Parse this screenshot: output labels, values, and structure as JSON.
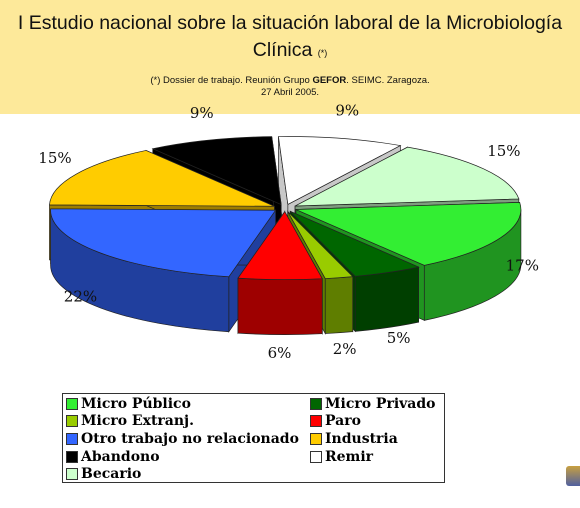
{
  "chart_data": {
    "type": "pie3d",
    "title": "I Estudio nacional sobre la situación laboral de la Microbiología Clínica",
    "title_note": "(*)",
    "source": {
      "prefix": "(*) Dossier de trabajo. Reunión Grupo",
      "group": "GEFOR",
      "suffix": ". SEIMC. Zaragoza.",
      "date": "27 Abril 2005."
    },
    "categories": [
      "Micro Público",
      "Micro Privado",
      "Micro Extranj.",
      "Paro",
      "Otro trabajo no relacionado",
      "Industria",
      "Abandono",
      "Remir",
      "Becario"
    ],
    "values": [
      17,
      5,
      2,
      6,
      22,
      15,
      9,
      9,
      15
    ],
    "value_labels": [
      "17%",
      "5%",
      "2%",
      "6%",
      "22%",
      "15%",
      "9%",
      "9%",
      "15%"
    ],
    "colors": [
      "#33ee33",
      "#006600",
      "#99cc00",
      "#ff0000",
      "#3366ff",
      "#ffcc00",
      "#000000",
      "#ffffff",
      "#ccffcc"
    ],
    "legend": true
  }
}
